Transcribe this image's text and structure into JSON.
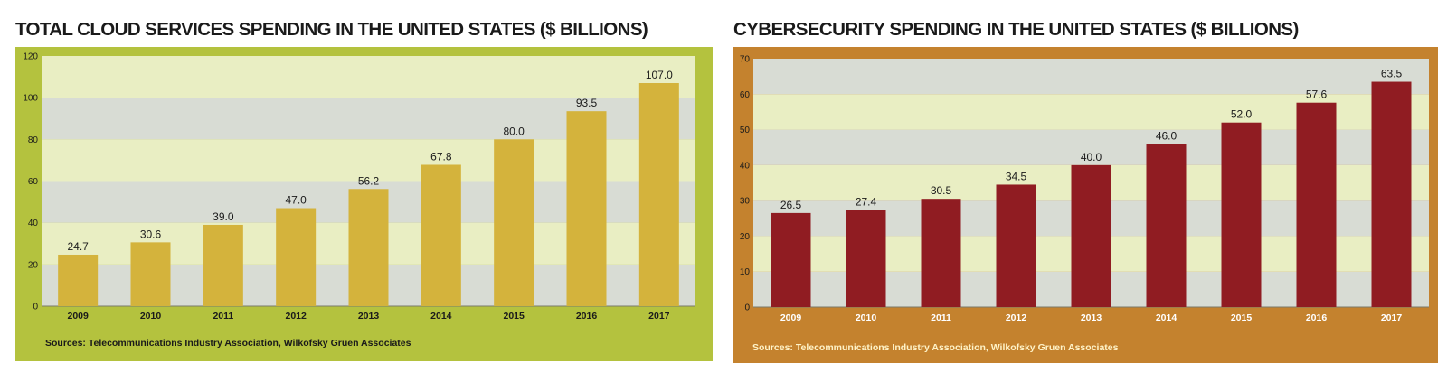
{
  "chart_data": [
    {
      "type": "bar",
      "title": "TOTAL CLOUD SERVICES SPENDING IN THE UNITED STATES ($ BILLIONS)",
      "categories": [
        "2009",
        "2010",
        "2011",
        "2012",
        "2013",
        "2014",
        "2015",
        "2016",
        "2017"
      ],
      "values": [
        24.7,
        30.6,
        39.0,
        47.0,
        56.2,
        67.8,
        80.0,
        93.5,
        107.0
      ],
      "value_labels": [
        "24.7",
        "30.6",
        "39.0",
        "47.0",
        "56.2",
        "67.8",
        "80.0",
        "93.5",
        "107.0"
      ],
      "ylim": [
        0,
        120
      ],
      "yticks": [
        0,
        20,
        40,
        60,
        80,
        100,
        120
      ],
      "grid": "alternating horizontal bands",
      "source": "Sources: Telecommunications Industry Association, Wilkofsky Gruen Associates",
      "colors": {
        "frame": "#b4c23e",
        "bar": "#d4b33c",
        "band_light": "#e9eec3",
        "band_dark": "#d8dcd4",
        "source_text": "#1a1a1a",
        "axis_label": "#1a1a1a"
      }
    },
    {
      "type": "bar",
      "title": "CYBERSECURITY SPENDING IN THE UNITED STATES ($ BILLIONS)",
      "categories": [
        "2009",
        "2010",
        "2011",
        "2012",
        "2013",
        "2014",
        "2015",
        "2016",
        "2017"
      ],
      "values": [
        26.5,
        27.4,
        30.5,
        34.5,
        40.0,
        46.0,
        52.0,
        57.6,
        63.5
      ],
      "value_labels": [
        "26.5",
        "27.4",
        "30.5",
        "34.5",
        "40.0",
        "46.0",
        "52.0",
        "57.6",
        "63.5"
      ],
      "ylim": [
        0,
        70
      ],
      "yticks": [
        0,
        10,
        20,
        30,
        40,
        50,
        60,
        70
      ],
      "grid": "alternating horizontal bands",
      "source": "Sources: Telecommunications Industry Association, Wilkofsky Gruen Associates",
      "colors": {
        "frame": "#c4822e",
        "bar": "#901c22",
        "band_light": "#e9eec3",
        "band_dark": "#d8dcd4",
        "source_text": "#fff3c8",
        "axis_label": "#ffffff"
      }
    }
  ]
}
